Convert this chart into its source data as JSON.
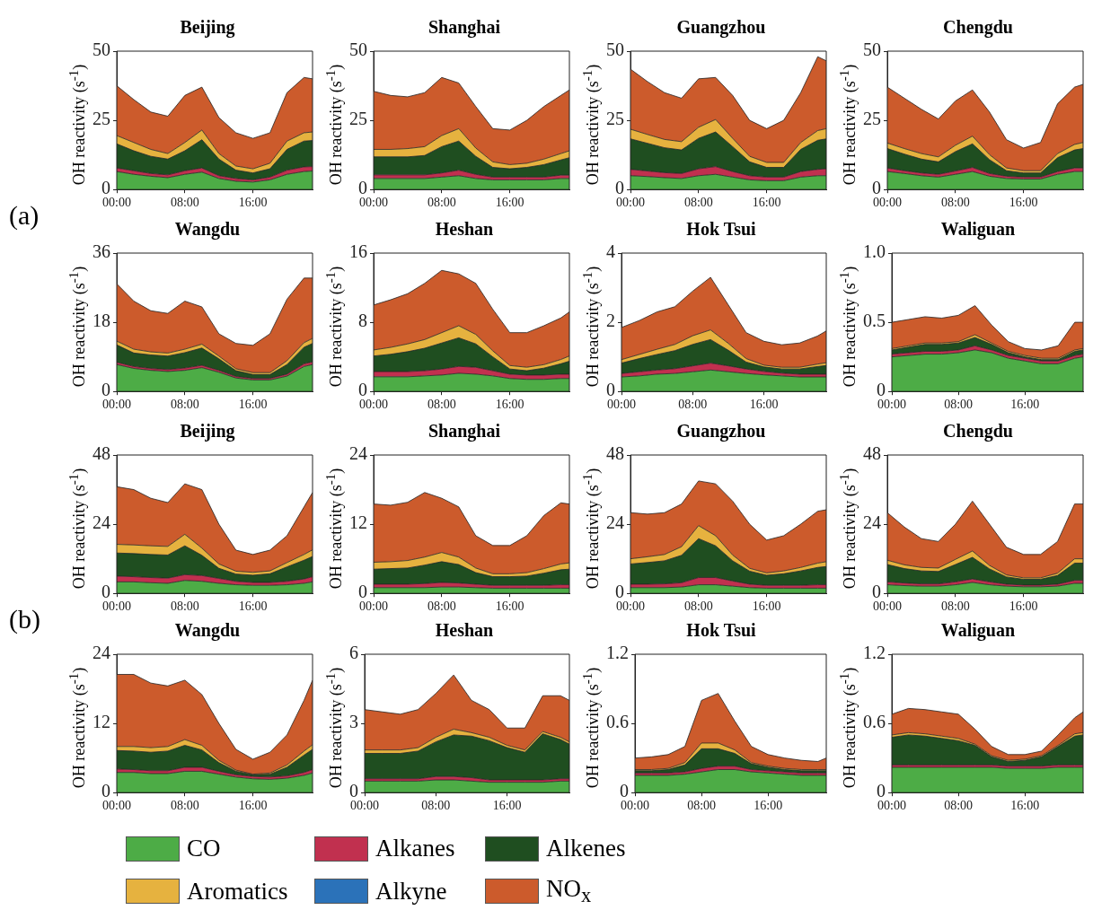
{
  "chart_data": [
    {
      "type": "area",
      "title": "Beijing",
      "ylabel": "OH reactivity (s$^{-1}$)",
      "stacked": true,
      "legend": "bottom",
      "annotations": [
        "(a)"
      ],
      "x": [
        0,
        2,
        4,
        6,
        8,
        10,
        12,
        14,
        16,
        18,
        20,
        22,
        23
      ],
      "xlim": [
        0,
        23
      ],
      "xticks": [
        {
          "value": 0,
          "label": "00:00"
        },
        {
          "value": 8,
          "label": "08:00"
        },
        {
          "value": 16,
          "label": "16:00"
        }
      ],
      "ylim": [
        0,
        50
      ],
      "yticks": [
        0,
        25,
        50
      ],
      "series": [
        {
          "name": "CO",
          "color": "#4dac46",
          "values": [
            6.5,
            5.5,
            4.8,
            4.3,
            5.5,
            6.3,
            4,
            3,
            2.7,
            3.5,
            5.5,
            6.5,
            6.7
          ]
        },
        {
          "name": "Alkanes",
          "color": "#c1304f",
          "values": [
            1.3,
            1.3,
            1,
            1,
            1.3,
            1.5,
            1,
            1,
            0.8,
            1,
            1.5,
            1.7,
            1.6
          ]
        },
        {
          "name": "Alkenes",
          "color": "#1f4e20",
          "values": [
            8.7,
            7.2,
            6.2,
            5.7,
            7.2,
            10.2,
            6,
            3,
            2.5,
            3,
            7.5,
            9.3,
            9.4
          ]
        },
        {
          "name": "Aromatics",
          "color": "#e6b23f",
          "values": [
            3,
            3,
            2.5,
            2,
            3,
            3.5,
            2,
            1.5,
            1.5,
            2,
            3,
            3,
            3.1
          ]
        },
        {
          "name": "Alkyne",
          "color": "#2b72b9",
          "values": [
            null,
            null,
            null,
            null,
            null,
            null,
            null,
            null,
            null,
            null,
            null,
            null,
            null
          ]
        },
        {
          "name": "NO$_{x}$",
          "color": "#cc5b2c",
          "values": [
            18,
            15.5,
            13.5,
            13.5,
            17,
            15.5,
            13,
            12,
            11,
            11,
            17.5,
            20,
            19.2
          ]
        }
      ]
    },
    {
      "type": "area",
      "title": "Shanghai",
      "ylabel": "OH reactivity (s$^{-1}$)",
      "stacked": true,
      "x": [
        0,
        2,
        4,
        6,
        8,
        10,
        12,
        14,
        16,
        18,
        20,
        22,
        23
      ],
      "xlim": [
        0,
        23
      ],
      "xticks": [
        {
          "value": 0,
          "label": "00:00"
        },
        {
          "value": 8,
          "label": "08:00"
        },
        {
          "value": 16,
          "label": "16:00"
        }
      ],
      "ylim": [
        0,
        50
      ],
      "yticks": [
        0,
        25,
        50
      ],
      "series": [
        {
          "color": "#4dac46",
          "values": [
            4,
            4,
            4,
            4,
            4.5,
            5,
            4,
            3.5,
            3.5,
            3.5,
            3.5,
            4,
            4
          ]
        },
        {
          "color": "#c1304f",
          "values": [
            1.3,
            1.3,
            1.3,
            1.3,
            1.5,
            2,
            1.5,
            1,
            1,
            1,
            1,
            1.2,
            1.2
          ]
        },
        {
          "color": "#1f4e20",
          "values": [
            6.5,
            6.5,
            6.5,
            7,
            9.5,
            10.5,
            6.5,
            3.5,
            3,
            3.5,
            4.5,
            5.5,
            6.3
          ]
        },
        {
          "color": "#e6b23f",
          "values": [
            2.7,
            2.7,
            3,
            3.2,
            4,
            4.5,
            3,
            2,
            1.5,
            1.5,
            2,
            2.3,
            2.5
          ]
        },
        {
          "color": "#cc5b2c",
          "values": [
            21,
            19.5,
            18.7,
            19.5,
            21,
            16.5,
            15,
            12,
            12.5,
            15.5,
            19,
            21,
            22
          ]
        }
      ]
    },
    {
      "type": "area",
      "title": "Guangzhou",
      "ylabel": "OH reactivity (s$^{-1}$)",
      "stacked": true,
      "x": [
        0,
        2,
        4,
        6,
        8,
        10,
        12,
        14,
        16,
        18,
        20,
        22,
        23
      ],
      "xlim": [
        0,
        23
      ],
      "xticks": [
        {
          "value": 0,
          "label": "00:00"
        },
        {
          "value": 8,
          "label": "08:00"
        },
        {
          "value": 16,
          "label": "16:00"
        }
      ],
      "ylim": [
        0,
        50
      ],
      "yticks": [
        0,
        25,
        50
      ],
      "series": [
        {
          "color": "#4dac46",
          "values": [
            5,
            4.7,
            4.3,
            4,
            5,
            5.5,
            4.5,
            3.5,
            3.2,
            3.2,
            4.5,
            5,
            5
          ]
        },
        {
          "color": "#c1304f",
          "values": [
            2.3,
            2,
            1.8,
            1.8,
            2.5,
            2.8,
            2,
            1.5,
            1.3,
            1.3,
            2,
            2.3,
            2.5
          ]
        },
        {
          "color": "#1f4e20",
          "values": [
            11,
            10,
            9,
            8.5,
            11,
            12.5,
            9,
            5,
            3.5,
            3.5,
            8,
            10.5,
            10.8
          ]
        },
        {
          "color": "#e6b23f",
          "values": [
            3.5,
            3.2,
            3,
            3,
            4,
            4.5,
            3,
            2,
            1.8,
            1.8,
            2.5,
            3.5,
            3.7
          ]
        },
        {
          "color": "#cc5b2c",
          "values": [
            21.7,
            19.1,
            16.9,
            15.7,
            17.5,
            15.2,
            15.5,
            13,
            12.2,
            15.2,
            18,
            26.7,
            24.5
          ]
        }
      ]
    },
    {
      "type": "area",
      "title": "Chengdu",
      "ylabel": "OH reactivity (s$^{-1}$)",
      "stacked": true,
      "x": [
        0,
        2,
        4,
        6,
        8,
        10,
        12,
        14,
        16,
        18,
        20,
        22,
        23
      ],
      "xlim": [
        0,
        23
      ],
      "xticks": [
        {
          "value": 0,
          "label": "00:00"
        },
        {
          "value": 8,
          "label": "08:00"
        },
        {
          "value": 16,
          "label": "16:00"
        }
      ],
      "ylim": [
        0,
        50
      ],
      "yticks": [
        0,
        25,
        50
      ],
      "series": [
        {
          "color": "#4dac46",
          "values": [
            6.5,
            5.8,
            5,
            4.5,
            5.5,
            6.5,
            4.8,
            4,
            3.8,
            3.8,
            5.5,
            6.5,
            6.5
          ]
        },
        {
          "color": "#c1304f",
          "values": [
            1.3,
            1,
            1,
            1,
            1.2,
            1.5,
            1,
            0.8,
            0.7,
            0.7,
            1,
            1.3,
            1.3
          ]
        },
        {
          "color": "#1f4e20",
          "values": [
            7,
            6,
            5,
            4.5,
            7,
            8.5,
            5,
            2,
            1.5,
            1.5,
            5,
            6.5,
            7
          ]
        },
        {
          "color": "#e6b23f",
          "values": [
            2,
            2,
            2,
            1.8,
            2.3,
            2.8,
            1.8,
            1,
            0.8,
            0.8,
            1.5,
            2,
            2.2
          ]
        },
        {
          "color": "#cc5b2c",
          "values": [
            20.2,
            18.2,
            16,
            13.7,
            16,
            16.7,
            15.4,
            10.2,
            8.2,
            10.2,
            18,
            20.7,
            21
          ]
        }
      ]
    },
    {
      "type": "area",
      "title": "Wangdu",
      "ylabel": "OH reactivity (s$^{-1}$)",
      "stacked": true,
      "x": [
        0,
        2,
        4,
        6,
        8,
        10,
        12,
        14,
        16,
        18,
        20,
        22,
        23
      ],
      "xlim": [
        0,
        23
      ],
      "xticks": [
        {
          "value": 0,
          "label": "00:00"
        },
        {
          "value": 8,
          "label": "08:00"
        },
        {
          "value": 16,
          "label": "16:00"
        }
      ],
      "ylim": [
        0,
        36
      ],
      "yticks": [
        0,
        18,
        36
      ],
      "series": [
        {
          "color": "#4dac46",
          "values": [
            7,
            6,
            5.5,
            5.2,
            5.5,
            6.2,
            5,
            3.5,
            3,
            3,
            4,
            6.5,
            7
          ]
        },
        {
          "color": "#c1304f",
          "values": [
            0.6,
            0.5,
            0.5,
            0.5,
            0.6,
            0.6,
            0.5,
            0.4,
            0.4,
            0.4,
            0.5,
            0.7,
            0.7
          ]
        },
        {
          "color": "#1f4e20",
          "values": [
            4.5,
            3.5,
            3.5,
            3.5,
            4,
            4.5,
            3,
            1.5,
            1,
            1,
            2.5,
            4.3,
            4.8
          ]
        },
        {
          "color": "#e6b23f",
          "values": [
            1,
            1,
            0.8,
            0.8,
            0.9,
            1,
            0.7,
            0.5,
            0.5,
            0.5,
            1,
            1.2,
            1.3
          ]
        },
        {
          "color": "#cc5b2c",
          "values": [
            14.9,
            12.5,
            10.7,
            10.3,
            12.5,
            9.7,
            5.8,
            6.6,
            7.1,
            10.1,
            16,
            16.8,
            15.7
          ]
        }
      ]
    },
    {
      "type": "area",
      "title": "Heshan",
      "ylabel": "OH reactivity (s$^{-1}$)",
      "stacked": true,
      "x": [
        0,
        2,
        4,
        6,
        8,
        10,
        12,
        14,
        16,
        18,
        20,
        22,
        23
      ],
      "xlim": [
        0,
        23
      ],
      "xticks": [
        {
          "value": 0,
          "label": "00:00"
        },
        {
          "value": 8,
          "label": "08:00"
        },
        {
          "value": 16,
          "label": "16:00"
        }
      ],
      "ylim": [
        0,
        16
      ],
      "yticks": [
        0,
        8,
        16
      ],
      "series": [
        {
          "color": "#4dac46",
          "values": [
            1.7,
            1.7,
            1.7,
            1.8,
            1.9,
            2.1,
            2,
            1.8,
            1.5,
            1.4,
            1.4,
            1.5,
            1.5
          ]
        },
        {
          "color": "#c1304f",
          "values": [
            0.6,
            0.6,
            0.6,
            0.6,
            0.7,
            0.8,
            0.8,
            0.6,
            0.5,
            0.5,
            0.5,
            0.5,
            0.5
          ]
        },
        {
          "color": "#1f4e20",
          "values": [
            1.8,
            2,
            2.3,
            2.6,
            3,
            3.3,
            2.7,
            1.6,
            0.6,
            0.5,
            0.8,
            1.2,
            1.5
          ]
        },
        {
          "color": "#e6b23f",
          "values": [
            0.7,
            0.8,
            0.9,
            1,
            1.2,
            1.4,
            1.1,
            0.7,
            0.4,
            0.4,
            0.4,
            0.5,
            0.6
          ]
        },
        {
          "color": "#cc5b2c",
          "values": [
            5.2,
            5.5,
            5.8,
            6.5,
            7.2,
            6,
            5.9,
            4.8,
            3.8,
            4,
            4.5,
            4.8,
            5.1
          ]
        }
      ]
    },
    {
      "type": "area",
      "title": "Hok Tsui",
      "ylabel": "OH reactivity (s$^{-1}$)",
      "stacked": true,
      "x": [
        0,
        2,
        4,
        6,
        8,
        10,
        12,
        14,
        16,
        18,
        20,
        22,
        23
      ],
      "xlim": [
        0,
        23
      ],
      "xticks": [
        {
          "value": 0,
          "label": "00:00"
        },
        {
          "value": 8,
          "label": "08:00"
        },
        {
          "value": 16,
          "label": "16:00"
        }
      ],
      "ylim": [
        0,
        4
      ],
      "yticks": [
        0,
        2,
        4
      ],
      "series": [
        {
          "color": "#4dac46",
          "values": [
            0.42,
            0.45,
            0.5,
            0.52,
            0.57,
            0.62,
            0.57,
            0.52,
            0.48,
            0.45,
            0.42,
            0.42,
            0.42
          ]
        },
        {
          "color": "#c1304f",
          "values": [
            0.1,
            0.12,
            0.12,
            0.14,
            0.17,
            0.2,
            0.17,
            0.13,
            0.1,
            0.08,
            0.08,
            0.08,
            0.08
          ]
        },
        {
          "color": "#1f4e20",
          "values": [
            0.3,
            0.38,
            0.45,
            0.52,
            0.62,
            0.68,
            0.45,
            0.2,
            0.13,
            0.12,
            0.15,
            0.22,
            0.25
          ]
        },
        {
          "color": "#e6b23f",
          "values": [
            0.1,
            0.12,
            0.15,
            0.18,
            0.25,
            0.28,
            0.2,
            0.1,
            0.05,
            0.05,
            0.05,
            0.07,
            0.08
          ]
        },
        {
          "color": "#cc5b2c",
          "values": [
            0.93,
            0.98,
            1.08,
            1.09,
            1.29,
            1.52,
            1.11,
            0.75,
            0.69,
            0.65,
            0.7,
            0.81,
            0.92
          ]
        }
      ]
    },
    {
      "type": "area",
      "title": "Waliguan",
      "ylabel": "OH reactivity (s$^{-1}$)",
      "stacked": true,
      "x": [
        0,
        2,
        4,
        6,
        8,
        10,
        12,
        14,
        16,
        18,
        20,
        22,
        23
      ],
      "xlim": [
        0,
        23
      ],
      "xticks": [
        {
          "value": 0,
          "label": "00:00"
        },
        {
          "value": 8,
          "label": "08:00"
        },
        {
          "value": 16,
          "label": "16:00"
        }
      ],
      "ylim": [
        0,
        1
      ],
      "yticks": [
        0,
        0.5,
        {
          "value": 1,
          "label": "1.0"
        }
      ],
      "series": [
        {
          "color": "#4dac46",
          "values": [
            0.25,
            0.26,
            0.27,
            0.27,
            0.28,
            0.3,
            0.28,
            0.24,
            0.22,
            0.2,
            0.2,
            0.24,
            0.25
          ]
        },
        {
          "color": "#c1304f",
          "values": [
            0.02,
            0.02,
            0.02,
            0.02,
            0.02,
            0.03,
            0.02,
            0.02,
            0.02,
            0.02,
            0.02,
            0.02,
            0.02
          ]
        },
        {
          "color": "#1f4e20",
          "values": [
            0.03,
            0.04,
            0.05,
            0.05,
            0.05,
            0.06,
            0.04,
            0.02,
            0.01,
            0.01,
            0.01,
            0.03,
            0.03
          ]
        },
        {
          "color": "#e6b23f",
          "values": [
            0.01,
            0.01,
            0.01,
            0.01,
            0.01,
            0.02,
            0.01,
            0.01,
            0.01,
            0.01,
            0.01,
            0.01,
            0.01
          ]
        },
        {
          "color": "#cc5b2c",
          "values": [
            0.19,
            0.19,
            0.19,
            0.18,
            0.19,
            0.21,
            0.13,
            0.07,
            0.05,
            0.06,
            0.09,
            0.2,
            0.19
          ]
        }
      ]
    },
    {
      "type": "area",
      "title": "Beijing",
      "ylabel": "OH reactivity (s$^{-1}$)",
      "stacked": true,
      "annotations": [
        "(b)"
      ],
      "x": [
        0,
        2,
        4,
        6,
        8,
        10,
        12,
        14,
        16,
        18,
        20,
        22,
        23
      ],
      "xlim": [
        0,
        23
      ],
      "xticks": [
        {
          "value": 0,
          "label": "00:00"
        },
        {
          "value": 8,
          "label": "08:00"
        },
        {
          "value": 16,
          "label": "16:00"
        }
      ],
      "ylim": [
        0,
        48
      ],
      "yticks": [
        0,
        24,
        48
      ],
      "series": [
        {
          "color": "#4dac46",
          "values": [
            4,
            4,
            3.7,
            3.5,
            4.5,
            4.2,
            3.5,
            3,
            2.8,
            2.8,
            3,
            3.5,
            4
          ]
        },
        {
          "color": "#c1304f",
          "values": [
            2,
            1.8,
            1.8,
            1.8,
            2,
            2,
            1.7,
            1.2,
            1,
            1,
            1.2,
            1.5,
            1.8
          ]
        },
        {
          "color": "#1f4e20",
          "values": [
            8,
            8,
            8,
            8,
            10,
            7,
            3.5,
            2.5,
            2.5,
            3,
            5,
            6.5,
            7
          ]
        },
        {
          "color": "#e6b23f",
          "values": [
            3,
            3,
            3,
            3,
            4,
            2.5,
            1.5,
            1,
            1,
            1,
            1.5,
            2,
            2.3
          ]
        },
        {
          "color": "#cc5b2c",
          "values": [
            20,
            19.2,
            16.5,
            15.2,
            17.5,
            20.3,
            13.8,
            7.3,
            6.2,
            7.2,
            9.3,
            16.5,
            19.9
          ]
        }
      ]
    },
    {
      "type": "area",
      "title": "Shanghai",
      "ylabel": "OH reactivity (s$^{-1}$)",
      "stacked": true,
      "x": [
        0,
        2,
        4,
        6,
        8,
        10,
        12,
        14,
        16,
        18,
        20,
        22,
        23
      ],
      "xlim": [
        0,
        23
      ],
      "xticks": [
        {
          "value": 0,
          "label": "00:00"
        },
        {
          "value": 8,
          "label": "08:00"
        },
        {
          "value": 16,
          "label": "16:00"
        }
      ],
      "ylim": [
        0,
        24
      ],
      "yticks": [
        0,
        12,
        24
      ],
      "series": [
        {
          "color": "#4dac46",
          "values": [
            1,
            1,
            1,
            1,
            1.1,
            1.1,
            1,
            0.9,
            0.9,
            0.9,
            0.9,
            0.9,
            0.9
          ]
        },
        {
          "color": "#c1304f",
          "values": [
            0.6,
            0.6,
            0.6,
            0.7,
            0.8,
            0.7,
            0.6,
            0.5,
            0.5,
            0.5,
            0.5,
            0.6,
            0.6
          ]
        },
        {
          "color": "#1f4e20",
          "values": [
            2.6,
            2.7,
            2.8,
            3.2,
            3.6,
            3.2,
            2,
            1.5,
            1.5,
            1.6,
            2.1,
            2.6,
            2.7
          ]
        },
        {
          "color": "#e6b23f",
          "values": [
            1.2,
            1.2,
            1.3,
            1.4,
            1.6,
            1.3,
            0.8,
            0.5,
            0.5,
            0.6,
            0.8,
            1,
            1.1
          ]
        },
        {
          "color": "#cc5b2c",
          "values": [
            10.1,
            9.8,
            10.1,
            11.2,
            9.4,
            8.7,
            5.6,
            4.9,
            4.9,
            6.4,
            9.2,
            10.6,
            10.2
          ]
        }
      ]
    },
    {
      "type": "area",
      "title": "Guangzhou",
      "ylabel": "OH reactivity (s$^{-1}$)",
      "stacked": true,
      "x": [
        0,
        2,
        4,
        6,
        8,
        10,
        12,
        14,
        16,
        18,
        20,
        22,
        23
      ],
      "xlim": [
        0,
        23
      ],
      "xticks": [
        {
          "value": 0,
          "label": "00:00"
        },
        {
          "value": 8,
          "label": "08:00"
        },
        {
          "value": 16,
          "label": "16:00"
        }
      ],
      "ylim": [
        0,
        48
      ],
      "yticks": [
        0,
        24,
        48
      ],
      "series": [
        {
          "color": "#4dac46",
          "values": [
            2,
            2,
            2,
            2.2,
            3,
            3,
            2.5,
            2,
            1.8,
            1.8,
            1.8,
            1.8,
            1.8
          ]
        },
        {
          "color": "#c1304f",
          "values": [
            1.2,
            1.2,
            1.3,
            1.5,
            2.5,
            2.5,
            1.8,
            1.2,
            1,
            1,
            1,
            1.2,
            1.2
          ]
        },
        {
          "color": "#1f4e20",
          "values": [
            7,
            7.5,
            8,
            9.5,
            13.5,
            11,
            7,
            4.5,
            3.5,
            4,
            5,
            6,
            6.3
          ]
        },
        {
          "color": "#e6b23f",
          "values": [
            1.8,
            2,
            2.2,
            3,
            4.5,
            3.5,
            2,
            1,
            0.8,
            1,
            1.2,
            1.5,
            1.7
          ]
        },
        {
          "color": "#cc5b2c",
          "values": [
            16,
            14.8,
            14.5,
            14.8,
            15.5,
            18,
            18.7,
            15.3,
            11.4,
            12.2,
            15,
            18,
            18
          ]
        }
      ]
    },
    {
      "type": "area",
      "title": "Chengdu",
      "ylabel": "OH reactivity (s$^{-1}$)",
      "stacked": true,
      "x": [
        0,
        2,
        4,
        6,
        8,
        10,
        12,
        14,
        16,
        18,
        20,
        22,
        23
      ],
      "xlim": [
        0,
        23
      ],
      "xticks": [
        {
          "value": 0,
          "label": "00:00"
        },
        {
          "value": 8,
          "label": "08:00"
        },
        {
          "value": 16,
          "label": "16:00"
        }
      ],
      "ylim": [
        0,
        48
      ],
      "yticks": [
        0,
        24,
        48
      ],
      "series": [
        {
          "color": "#4dac46",
          "values": [
            3,
            2.7,
            2.5,
            2.5,
            3,
            3.8,
            3,
            2.5,
            2.3,
            2.3,
            2.5,
            3.5,
            3.5
          ]
        },
        {
          "color": "#c1304f",
          "values": [
            1,
            0.9,
            0.8,
            0.8,
            1,
            1.2,
            1,
            0.7,
            0.6,
            0.6,
            0.7,
            1,
            1
          ]
        },
        {
          "color": "#1f4e20",
          "values": [
            6,
            5,
            4.5,
            4.3,
            6,
            7.5,
            4.5,
            2.5,
            2,
            2,
            3,
            6,
            6
          ]
        },
        {
          "color": "#e6b23f",
          "values": [
            1.5,
            1.3,
            1.2,
            1.2,
            1.8,
            2.2,
            1.2,
            0.7,
            0.5,
            0.5,
            0.8,
            1.5,
            1.5
          ]
        },
        {
          "color": "#cc5b2c",
          "values": [
            16.5,
            13.1,
            10,
            9.2,
            12.2,
            17.3,
            14.3,
            9.6,
            8.1,
            8.1,
            11,
            19,
            19
          ]
        }
      ]
    },
    {
      "type": "area",
      "title": "Wangdu",
      "ylabel": "OH reactivity (s$^{-1}$)",
      "stacked": true,
      "x": [
        0,
        2,
        4,
        6,
        8,
        10,
        12,
        14,
        16,
        18,
        20,
        22,
        23
      ],
      "xlim": [
        0,
        23
      ],
      "xticks": [
        {
          "value": 0,
          "label": "00:00"
        },
        {
          "value": 8,
          "label": "08:00"
        },
        {
          "value": 16,
          "label": "16:00"
        }
      ],
      "ylim": [
        0,
        24
      ],
      "yticks": [
        0,
        12,
        24
      ],
      "series": [
        {
          "color": "#4dac46",
          "values": [
            3.5,
            3.5,
            3.3,
            3.3,
            3.7,
            3.7,
            3.2,
            2.7,
            2.4,
            2.3,
            2.5,
            3,
            3.4
          ]
        },
        {
          "color": "#c1304f",
          "values": [
            0.6,
            0.5,
            0.5,
            0.5,
            0.7,
            0.7,
            0.5,
            0.4,
            0.4,
            0.4,
            0.4,
            0.5,
            0.6
          ]
        },
        {
          "color": "#1f4e20",
          "values": [
            3.2,
            3.2,
            3.2,
            3.4,
            3.8,
            3,
            1.5,
            0.6,
            0.3,
            0.5,
            1.5,
            3,
            3.5
          ]
        },
        {
          "color": "#e6b23f",
          "values": [
            0.7,
            0.8,
            0.8,
            0.8,
            1,
            0.8,
            0.4,
            0.2,
            0.1,
            0.2,
            0.4,
            0.7,
            0.8
          ]
        },
        {
          "color": "#cc5b2c",
          "values": [
            12.5,
            12.5,
            11.2,
            10.5,
            10.3,
            8.8,
            6.4,
            3.6,
            2.6,
            3.6,
            5.2,
            8.8,
            11.2
          ]
        }
      ]
    },
    {
      "type": "area",
      "title": "Heshan",
      "ylabel": "OH reactivity (s$^{-1}$)",
      "stacked": true,
      "x": [
        0,
        2,
        4,
        6,
        8,
        10,
        12,
        14,
        16,
        18,
        20,
        22,
        23
      ],
      "xlim": [
        0,
        23
      ],
      "xticks": [
        {
          "value": 0,
          "label": "00:00"
        },
        {
          "value": 8,
          "label": "08:00"
        },
        {
          "value": 16,
          "label": "16:00"
        }
      ],
      "ylim": [
        0,
        6
      ],
      "yticks": [
        0,
        3,
        6
      ],
      "series": [
        {
          "color": "#4dac46",
          "values": [
            0.5,
            0.5,
            0.5,
            0.5,
            0.55,
            0.55,
            0.5,
            0.45,
            0.45,
            0.45,
            0.45,
            0.5,
            0.5
          ]
        },
        {
          "color": "#c1304f",
          "values": [
            0.1,
            0.1,
            0.1,
            0.1,
            0.15,
            0.15,
            0.15,
            0.1,
            0.1,
            0.1,
            0.1,
            0.1,
            0.1
          ]
        },
        {
          "color": "#1f4e20",
          "values": [
            1.1,
            1.1,
            1.1,
            1.2,
            1.5,
            1.8,
            1.8,
            1.7,
            1.4,
            1.2,
            2,
            1.7,
            1.5
          ]
        },
        {
          "color": "#e6b23f",
          "values": [
            0.15,
            0.15,
            0.15,
            0.15,
            0.2,
            0.25,
            0.15,
            0.15,
            0.1,
            0.1,
            0.1,
            0.1,
            0.1
          ]
        },
        {
          "color": "#cc5b2c",
          "values": [
            1.75,
            1.65,
            1.55,
            1.65,
            1.9,
            2.35,
            1.4,
            1.2,
            0.75,
            0.95,
            1.55,
            1.8,
            1.8
          ]
        }
      ]
    },
    {
      "type": "area",
      "title": "Hok Tsui",
      "ylabel": "OH reactivity (s$^{-1}$)",
      "stacked": true,
      "x": [
        0,
        2,
        4,
        6,
        8,
        10,
        12,
        14,
        16,
        18,
        20,
        22,
        23
      ],
      "xlim": [
        0,
        23
      ],
      "xticks": [
        {
          "value": 0,
          "label": "00:00"
        },
        {
          "value": 8,
          "label": "08:00"
        },
        {
          "value": 16,
          "label": "16:00"
        }
      ],
      "ylim": [
        0,
        1.2
      ],
      "yticks": [
        0,
        0.6,
        1.2
      ],
      "series": [
        {
          "color": "#4dac46",
          "values": [
            0.15,
            0.15,
            0.15,
            0.16,
            0.18,
            0.2,
            0.2,
            0.18,
            0.17,
            0.16,
            0.15,
            0.15,
            0.15
          ]
        },
        {
          "color": "#c1304f",
          "values": [
            0.02,
            0.02,
            0.02,
            0.02,
            0.03,
            0.03,
            0.03,
            0.02,
            0.02,
            0.02,
            0.02,
            0.02,
            0.02
          ]
        },
        {
          "color": "#1f4e20",
          "values": [
            0.02,
            0.02,
            0.03,
            0.06,
            0.17,
            0.15,
            0.11,
            0.05,
            0.03,
            0.02,
            0.02,
            0.02,
            0.02
          ]
        },
        {
          "color": "#e6b23f",
          "values": [
            0.01,
            0.01,
            0.01,
            0.02,
            0.05,
            0.05,
            0.03,
            0.01,
            0.01,
            0.01,
            0.01,
            0.01,
            0.01
          ]
        },
        {
          "color": "#cc5b2c",
          "values": [
            0.1,
            0.11,
            0.12,
            0.14,
            0.37,
            0.43,
            0.25,
            0.14,
            0.1,
            0.09,
            0.08,
            0.07,
            0.1
          ]
        }
      ]
    },
    {
      "type": "area",
      "title": "Waliguan",
      "ylabel": "OH reactivity (s$^{-1}$)",
      "stacked": true,
      "x": [
        0,
        2,
        4,
        6,
        8,
        10,
        12,
        14,
        16,
        18,
        20,
        22,
        23
      ],
      "xlim": [
        0,
        23
      ],
      "xticks": [
        {
          "value": 0,
          "label": "00:00"
        },
        {
          "value": 8,
          "label": "08:00"
        },
        {
          "value": 16,
          "label": "16:00"
        }
      ],
      "ylim": [
        0,
        1.2
      ],
      "yticks": [
        0,
        0.6,
        1.2
      ],
      "series": [
        {
          "color": "#4dac46",
          "values": [
            0.22,
            0.22,
            0.22,
            0.22,
            0.22,
            0.22,
            0.22,
            0.21,
            0.21,
            0.21,
            0.22,
            0.22,
            0.22
          ]
        },
        {
          "color": "#c1304f",
          "values": [
            0.02,
            0.02,
            0.02,
            0.02,
            0.02,
            0.02,
            0.02,
            0.02,
            0.02,
            0.02,
            0.02,
            0.02,
            0.02
          ]
        },
        {
          "color": "#1f4e20",
          "values": [
            0.24,
            0.26,
            0.25,
            0.23,
            0.21,
            0.17,
            0.07,
            0.04,
            0.05,
            0.08,
            0.16,
            0.25,
            0.26
          ]
        },
        {
          "color": "#e6b23f",
          "values": [
            0.02,
            0.02,
            0.02,
            0.02,
            0.02,
            0.01,
            0.01,
            0.01,
            0.01,
            0.01,
            0.01,
            0.02,
            0.02
          ]
        },
        {
          "color": "#cc5b2c",
          "values": [
            0.18,
            0.21,
            0.21,
            0.21,
            0.21,
            0.13,
            0.08,
            0.05,
            0.04,
            0.04,
            0.09,
            0.14,
            0.18
          ]
        }
      ]
    }
  ]
}
